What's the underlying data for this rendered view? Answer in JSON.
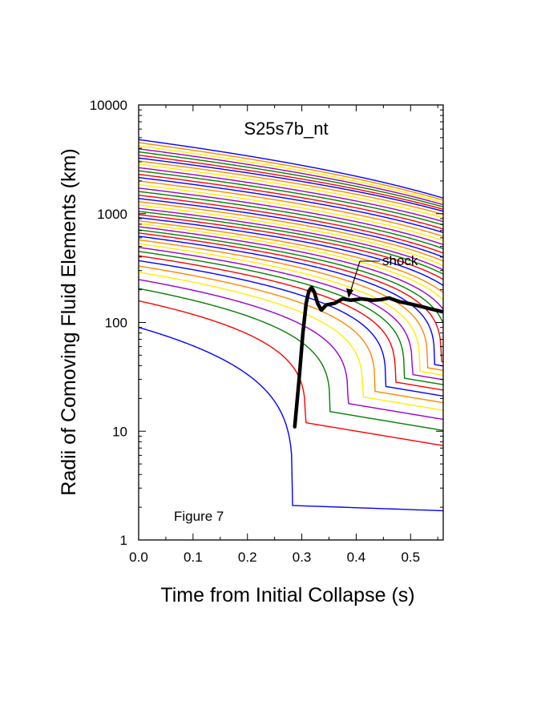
{
  "chart_data": {
    "type": "line",
    "title": "S25s7b_nt",
    "xlabel": "Time from Initial Collapse (s)",
    "ylabel": "Radii of Comoving Fluid Elements (km)",
    "xlim": [
      0.0,
      0.56
    ],
    "ylim": [
      1,
      10000
    ],
    "yscale": "log",
    "x_ticks": [
      0.0,
      0.1,
      0.2,
      0.3,
      0.4,
      0.5
    ],
    "x_tick_labels": [
      "0.0",
      "0.1",
      "0.2",
      "0.3",
      "0.4",
      "0.5"
    ],
    "y_ticks": [
      1,
      10,
      100,
      1000,
      10000
    ],
    "y_tick_labels": [
      "1",
      "10",
      "100",
      "1000",
      "10000"
    ],
    "figure_label": "Figure 7",
    "annotation": {
      "text": "shock",
      "points_to": {
        "x": 0.385,
        "y": 160
      }
    },
    "line_colors": [
      "#0000ff",
      "#ff0000",
      "#008000",
      "#9900cc",
      "#ffee00",
      "#ff8800"
    ],
    "fluid_elements": {
      "description": "Family of comoving mass-shell trajectories, colors cycling blue, red, green, purple, yellow, orange",
      "initial_radii_km": [
        90,
        158,
        205,
        248,
        290,
        330,
        370,
        410,
        450,
        490,
        530,
        575,
        620,
        665,
        710,
        760,
        810,
        860,
        920,
        980,
        1050,
        1120,
        1200,
        1290,
        1380,
        1480,
        1600,
        1720,
        1850,
        2000,
        2150,
        2300,
        2480,
        2650,
        2850,
        3050,
        3250,
        3450,
        3700,
        3950,
        4200,
        4500,
        4800
      ]
    },
    "series": [
      {
        "name": "shock",
        "color": "#000000",
        "x": [
          0.287,
          0.295,
          0.302,
          0.308,
          0.313,
          0.318,
          0.323,
          0.329,
          0.336,
          0.345,
          0.36,
          0.375,
          0.39,
          0.41,
          0.43,
          0.445,
          0.46,
          0.48,
          0.5,
          0.52,
          0.54,
          0.56
        ],
        "y": [
          11,
          30,
          80,
          150,
          195,
          210,
          190,
          150,
          130,
          145,
          150,
          165,
          160,
          165,
          160,
          162,
          168,
          155,
          148,
          140,
          132,
          125
        ]
      }
    ]
  }
}
